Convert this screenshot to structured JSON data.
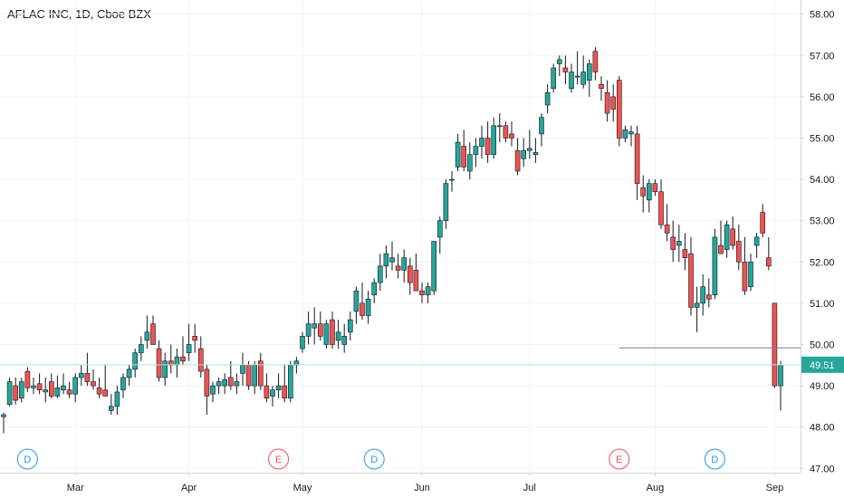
{
  "header": {
    "title": "AFLAC INC, 1D, Cboe BZX"
  },
  "colors": {
    "up": "#26a69a",
    "down": "#ef5350",
    "wick": "#131722",
    "grid": "#f0f3fa",
    "axis_text": "#131722",
    "last_price": "#b2dfdb",
    "last_price_label_bg": "#26a69a",
    "event_dividend": "#2196f3",
    "event_earnings": "#ef5350"
  },
  "chart_data": {
    "type": "candlestick",
    "title": "AFLAC INC, 1D, Cboe BZX",
    "ylim": [
      46.8,
      58.3
    ],
    "grid": true,
    "y_ticks": [
      "58.00",
      "57.00",
      "56.00",
      "55.00",
      "54.00",
      "53.00",
      "52.00",
      "51.00",
      "50.00",
      "49.00",
      "48.00",
      "47.00"
    ],
    "x_ticks": [
      {
        "label": "Mar",
        "index": 12
      },
      {
        "label": "Apr",
        "index": 31
      },
      {
        "label": "May",
        "index": 50
      },
      {
        "label": "Jun",
        "index": 70
      },
      {
        "label": "Jul",
        "index": 88
      },
      {
        "label": "Aug",
        "index": 109
      },
      {
        "label": "Sep",
        "index": 129
      }
    ],
    "last_price": {
      "value": 49.51,
      "label": "49.51"
    },
    "horizontal_line": {
      "value": 49.92,
      "from_index": 103
    },
    "events": [
      {
        "label": "D",
        "type": "dividend",
        "index": 4
      },
      {
        "label": "E",
        "type": "earnings",
        "index": 46
      },
      {
        "label": "D",
        "type": "dividend",
        "index": 62
      },
      {
        "label": "E",
        "type": "earnings",
        "index": 103
      },
      {
        "label": "D",
        "type": "dividend",
        "index": 119
      }
    ],
    "candles": [
      [
        48.25,
        48.35,
        47.85,
        48.3
      ],
      [
        48.55,
        49.2,
        48.5,
        49.1
      ],
      [
        49.0,
        49.2,
        48.55,
        48.65
      ],
      [
        48.7,
        49.2,
        48.6,
        49.1
      ],
      [
        49.35,
        49.45,
        48.85,
        48.95
      ],
      [
        48.95,
        49.2,
        48.8,
        49.0
      ],
      [
        49.05,
        49.3,
        48.8,
        48.9
      ],
      [
        48.85,
        49.2,
        48.6,
        48.9
      ],
      [
        49.1,
        49.3,
        48.7,
        48.75
      ],
      [
        48.75,
        49.25,
        48.7,
        48.95
      ],
      [
        48.9,
        49.3,
        48.8,
        49.0
      ],
      [
        48.9,
        49.1,
        48.7,
        48.8
      ],
      [
        48.8,
        49.3,
        48.6,
        49.2
      ],
      [
        49.2,
        49.5,
        49.0,
        49.3
      ],
      [
        49.3,
        49.8,
        49.0,
        49.1
      ],
      [
        49.1,
        49.4,
        48.9,
        49.0
      ],
      [
        48.95,
        49.2,
        48.7,
        48.8
      ],
      [
        48.9,
        49.5,
        48.8,
        48.75
      ],
      [
        48.4,
        48.8,
        48.3,
        48.5
      ],
      [
        48.5,
        49.0,
        48.3,
        48.85
      ],
      [
        48.9,
        49.3,
        48.7,
        49.2
      ],
      [
        49.2,
        49.5,
        49.0,
        49.4
      ],
      [
        49.4,
        49.9,
        49.2,
        49.8
      ],
      [
        49.8,
        50.2,
        49.6,
        50.0
      ],
      [
        50.1,
        50.7,
        49.9,
        50.3
      ],
      [
        50.5,
        50.7,
        50.0,
        50.0
      ],
      [
        49.9,
        50.1,
        49.1,
        49.2
      ],
      [
        49.2,
        49.8,
        49.0,
        49.6
      ],
      [
        49.6,
        50.0,
        49.3,
        49.5
      ],
      [
        49.5,
        49.9,
        49.2,
        49.7
      ],
      [
        49.7,
        50.2,
        49.5,
        49.6
      ],
      [
        49.8,
        50.5,
        49.6,
        50.0
      ],
      [
        50.2,
        50.5,
        49.8,
        50.1
      ],
      [
        49.9,
        50.2,
        49.2,
        49.35
      ],
      [
        49.4,
        49.5,
        48.3,
        48.75
      ],
      [
        48.8,
        49.1,
        48.6,
        49.0
      ],
      [
        49.0,
        49.2,
        48.8,
        49.1
      ],
      [
        49.0,
        49.3,
        48.8,
        49.15
      ],
      [
        49.2,
        49.6,
        48.9,
        49.0
      ],
      [
        49.0,
        49.3,
        48.8,
        49.1
      ],
      [
        49.3,
        49.8,
        49.0,
        49.5
      ],
      [
        49.5,
        49.6,
        48.9,
        49.0
      ],
      [
        49.0,
        49.6,
        48.8,
        49.5
      ],
      [
        49.6,
        49.8,
        48.9,
        49.0
      ],
      [
        49.0,
        49.3,
        48.6,
        48.7
      ],
      [
        48.75,
        49.0,
        48.5,
        48.9
      ],
      [
        48.9,
        49.3,
        48.7,
        49.0
      ],
      [
        49.0,
        49.5,
        48.6,
        48.7
      ],
      [
        48.7,
        49.6,
        48.6,
        49.5
      ],
      [
        49.5,
        49.7,
        49.3,
        49.6
      ],
      [
        49.9,
        50.3,
        49.8,
        50.2
      ],
      [
        50.2,
        50.8,
        50.0,
        50.5
      ],
      [
        50.4,
        50.9,
        50.0,
        50.5
      ],
      [
        50.5,
        50.8,
        50.1,
        50.2
      ],
      [
        50.0,
        50.6,
        49.9,
        50.5
      ],
      [
        50.6,
        50.8,
        49.9,
        50.0
      ],
      [
        50.1,
        50.6,
        49.9,
        50.3
      ],
      [
        50.0,
        50.5,
        49.8,
        50.2
      ],
      [
        50.3,
        50.8,
        50.1,
        50.6
      ],
      [
        50.8,
        51.4,
        50.5,
        51.3
      ],
      [
        51.0,
        51.5,
        50.6,
        50.7
      ],
      [
        50.7,
        51.3,
        50.5,
        51.1
      ],
      [
        51.2,
        51.6,
        51.0,
        51.5
      ],
      [
        51.5,
        52.2,
        51.3,
        51.9
      ],
      [
        51.9,
        52.4,
        51.6,
        52.2
      ],
      [
        52.0,
        52.5,
        51.8,
        52.1
      ],
      [
        51.9,
        52.2,
        51.6,
        51.8
      ],
      [
        51.8,
        52.3,
        51.5,
        52.1
      ],
      [
        51.9,
        52.1,
        51.2,
        51.5
      ],
      [
        51.8,
        52.2,
        51.3,
        51.3
      ],
      [
        51.3,
        51.5,
        51.0,
        51.2
      ],
      [
        51.2,
        51.5,
        51.0,
        51.4
      ],
      [
        51.3,
        52.5,
        51.2,
        52.5
      ],
      [
        52.6,
        53.1,
        52.2,
        53.0
      ],
      [
        53.0,
        54.0,
        52.8,
        53.9
      ],
      [
        54.0,
        54.2,
        53.7,
        54.0
      ],
      [
        54.3,
        55.1,
        54.2,
        54.9
      ],
      [
        54.8,
        55.2,
        54.2,
        54.3
      ],
      [
        54.2,
        54.9,
        54.0,
        54.6
      ],
      [
        54.6,
        55.0,
        54.3,
        54.8
      ],
      [
        54.8,
        55.3,
        54.5,
        55.0
      ],
      [
        55.0,
        55.4,
        54.4,
        54.6
      ],
      [
        54.6,
        55.5,
        54.5,
        55.3
      ],
      [
        55.3,
        55.6,
        54.9,
        55.3
      ],
      [
        55.3,
        55.4,
        54.9,
        55.0
      ],
      [
        55.1,
        55.4,
        54.8,
        55.0
      ],
      [
        54.7,
        55.0,
        54.1,
        54.2
      ],
      [
        54.5,
        55.0,
        54.3,
        54.7
      ],
      [
        54.7,
        55.2,
        54.5,
        54.75
      ],
      [
        54.6,
        55.0,
        54.4,
        54.65
      ],
      [
        55.1,
        55.6,
        54.8,
        55.5
      ],
      [
        55.8,
        56.3,
        55.6,
        56.1
      ],
      [
        56.2,
        56.8,
        56.1,
        56.7
      ],
      [
        56.8,
        57.0,
        56.5,
        56.9
      ],
      [
        56.7,
        57.0,
        56.3,
        56.6
      ],
      [
        56.2,
        56.8,
        56.1,
        56.6
      ],
      [
        56.5,
        57.1,
        56.3,
        56.5
      ],
      [
        56.3,
        57.0,
        56.2,
        56.6
      ],
      [
        56.4,
        56.9,
        56.0,
        56.8
      ],
      [
        57.1,
        57.2,
        56.4,
        56.6
      ],
      [
        56.3,
        56.5,
        55.9,
        56.2
      ],
      [
        56.1,
        56.4,
        55.4,
        55.6
      ],
      [
        56.0,
        56.3,
        55.4,
        55.7
      ],
      [
        56.4,
        56.5,
        54.8,
        55.0
      ],
      [
        55.0,
        55.3,
        54.9,
        55.2
      ],
      [
        55.1,
        55.3,
        54.8,
        55.15
      ],
      [
        55.1,
        55.3,
        53.5,
        53.9
      ],
      [
        53.8,
        54.1,
        53.2,
        53.6
      ],
      [
        53.5,
        54.0,
        53.2,
        53.9
      ],
      [
        53.9,
        54.0,
        53.6,
        53.7
      ],
      [
        53.7,
        54.0,
        52.8,
        52.9
      ],
      [
        52.9,
        53.4,
        52.5,
        52.7
      ],
      [
        52.6,
        53.0,
        52.0,
        52.3
      ],
      [
        52.4,
        52.9,
        52.0,
        52.5
      ],
      [
        52.3,
        52.7,
        51.8,
        52.1
      ],
      [
        52.2,
        52.6,
        50.7,
        50.9
      ],
      [
        50.9,
        51.4,
        50.3,
        51.0
      ],
      [
        51.0,
        51.7,
        50.7,
        51.4
      ],
      [
        51.2,
        51.6,
        50.9,
        51.1
      ],
      [
        51.2,
        52.8,
        51.1,
        52.6
      ],
      [
        52.4,
        53.0,
        52.2,
        52.2
      ],
      [
        52.3,
        53.0,
        52.1,
        52.9
      ],
      [
        52.8,
        53.1,
        52.3,
        52.4
      ],
      [
        52.5,
        52.9,
        51.8,
        52.0
      ],
      [
        52.0,
        52.6,
        51.2,
        51.3
      ],
      [
        51.4,
        52.2,
        51.3,
        52.0
      ],
      [
        52.4,
        52.7,
        52.1,
        52.6
      ],
      [
        53.2,
        53.4,
        52.6,
        52.7
      ],
      [
        52.1,
        52.6,
        51.8,
        51.9
      ],
      [
        51.0,
        51.0,
        48.95,
        49.0
      ],
      [
        49.0,
        49.6,
        48.4,
        49.51
      ]
    ]
  }
}
